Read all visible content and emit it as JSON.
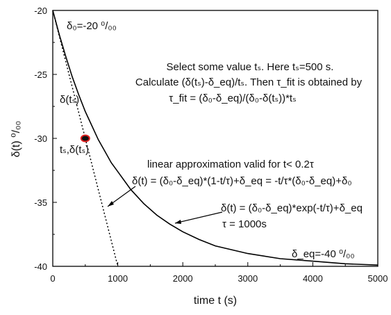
{
  "chart_data": {
    "type": "line",
    "xlabel": "time t (s)",
    "ylabel": "δ(t) ⁰/₀₀",
    "xlim": [
      0,
      5000
    ],
    "ylim": [
      -40,
      -20
    ],
    "x_ticks": [
      0,
      1000,
      2000,
      3000,
      4000,
      5000
    ],
    "y_ticks": [
      -20,
      -25,
      -30,
      -35,
      -40
    ],
    "x_tick_labels": [
      "0",
      "1000",
      "2000",
      "3000",
      "4000",
      "5000"
    ],
    "y_tick_labels": [
      "-20",
      "-25",
      "-30",
      "-35",
      "-40"
    ],
    "grid": false,
    "legend": "none",
    "series": [
      {
        "style": "solid",
        "color": "#000000",
        "x": [
          0,
          100,
          200,
          300,
          400,
          500,
          600,
          700,
          800,
          900,
          1000,
          1200,
          1400,
          1600,
          1800,
          2000,
          2250,
          2500,
          2750,
          3000,
          3500,
          4000,
          4500,
          5000
        ],
        "y": [
          -20.0,
          -21.9,
          -23.6,
          -25.2,
          -26.6,
          -27.9,
          -29.0,
          -30.1,
          -31.0,
          -31.9,
          -32.6,
          -34.0,
          -35.1,
          -36.0,
          -36.7,
          -37.3,
          -37.9,
          -38.4,
          -38.7,
          -39.0,
          -39.4,
          -39.6,
          -39.8,
          -39.9
        ]
      },
      {
        "style": "dotted",
        "color": "#000000",
        "x": [
          0,
          1000
        ],
        "y": [
          -20,
          -40
        ]
      }
    ],
    "marker": {
      "x": 500,
      "y": -30,
      "fill": "#111111",
      "ring": "#e02020"
    }
  },
  "annotations": {
    "delta0_label": "δ₀=-20 ⁰/₀₀",
    "delta_eq_label": "δ_eq=-40 ⁰/₀₀",
    "ylabel_inner": "δ(tₛ)",
    "marker_label": "tₛ,δ(tₛ)",
    "text_block_line1": "Select some value tₛ. Here tₛ=500 s.",
    "text_block_line2": "Calculate (δ(tₛ)-δ_eq)/tₛ. Then τ_fit is obtained by",
    "text_block_line3": "τ_fit = (δ₀-δ_eq)/(δ₀-δ(tₛ))*tₛ",
    "linear_line1": "linear approximation valid for t< 0.2τ",
    "linear_line2": "δ(t) = (δ₀-δ_eq)*(1-t/τ)+δ_eq = -t/τ*(δ₀-δ_eq)+δ₀",
    "exp_line1": "δ(t) = (δ₀-δ_eq)*exp(-t/τ)+δ_eq",
    "exp_line2": "τ = 1000s"
  }
}
